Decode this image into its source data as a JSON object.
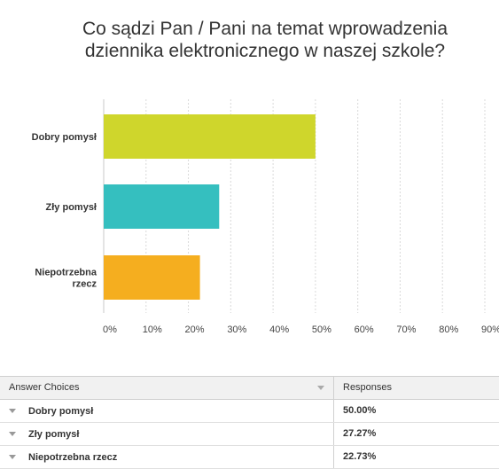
{
  "chart_data": {
    "type": "bar",
    "orientation": "horizontal",
    "title_lines": [
      "Co sądzi Pan / Pani na temat wprowadzenia",
      "dziennika elektronicznego w naszej szkole?"
    ],
    "categories": [
      {
        "lines": [
          "Dobry pomysł"
        ],
        "value": 50.0,
        "color": "#cfd62c"
      },
      {
        "lines": [
          "Zły pomysł"
        ],
        "value": 27.27,
        "color": "#35bfbf"
      },
      {
        "lines": [
          "Niepotrzebna",
          "rzecz"
        ],
        "value": 22.73,
        "color": "#f5ae1f"
      }
    ],
    "xlim": [
      0,
      90
    ],
    "xticks": [
      0,
      10,
      20,
      30,
      40,
      50,
      60,
      70,
      80,
      90
    ],
    "tick_suffix": "%",
    "grid": true
  },
  "table": {
    "headers": {
      "choices": "Answer Choices",
      "responses": "Responses"
    },
    "rows": [
      {
        "choice": "Dobry pomysł",
        "response": "50.00%"
      },
      {
        "choice": "Zły pomysł",
        "response": "27.27%"
      },
      {
        "choice": "Niepotrzebna rzecz",
        "response": "22.73%"
      }
    ]
  }
}
